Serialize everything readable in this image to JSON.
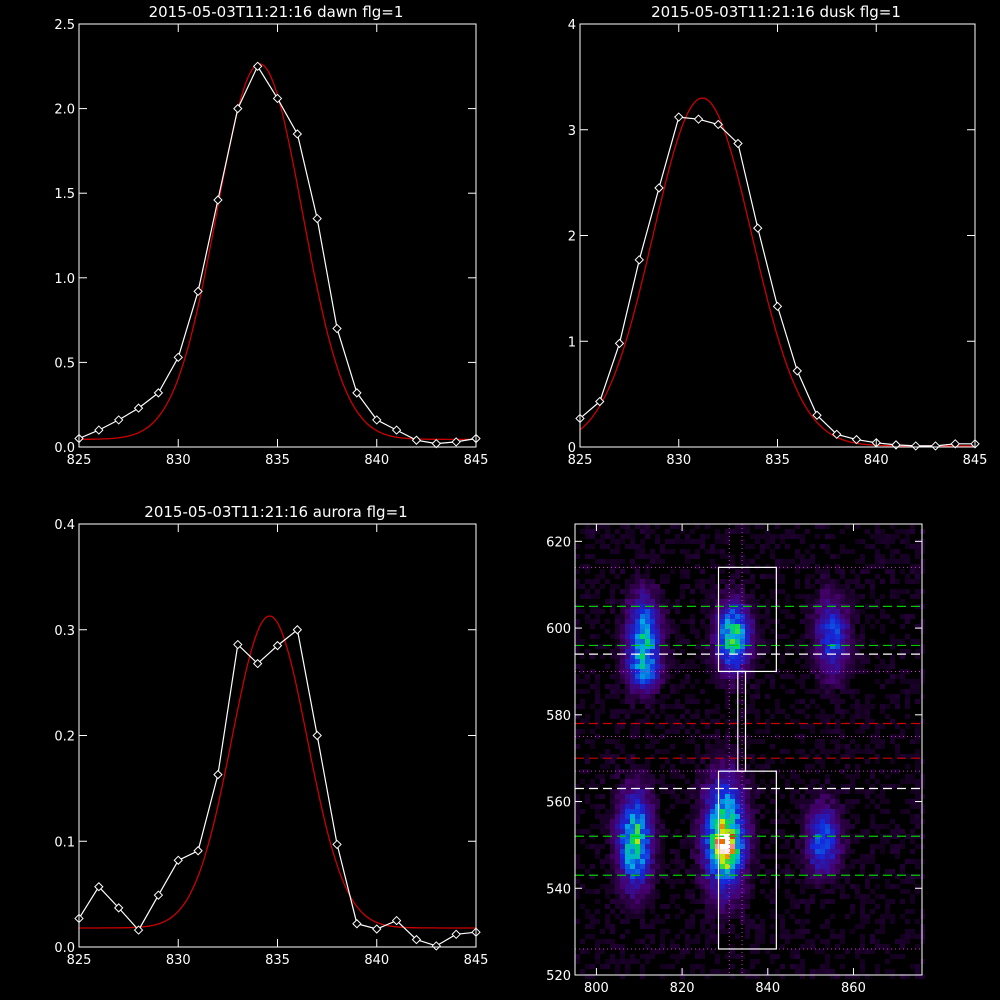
{
  "chart_data": [
    {
      "type": "line",
      "title": "2015-05-03T11:21:16 dawn flg=1",
      "xlim": [
        825,
        845
      ],
      "ylim": [
        0,
        2.5
      ],
      "xticks": [
        "825",
        "830",
        "835",
        "840",
        "845"
      ],
      "yticks": [
        "0.0",
        "0.5",
        "1.0",
        "1.5",
        "2.0",
        "2.5"
      ],
      "xtick_values": [
        825,
        830,
        835,
        840,
        845
      ],
      "ytick_values": [
        0,
        0.5,
        1.0,
        1.5,
        2.0,
        2.5
      ],
      "colors": {
        "data": "#ffffff",
        "fit": "#cc0000"
      },
      "series": [
        {
          "x": [
            825,
            826,
            827,
            828,
            829,
            830,
            831,
            832,
            833,
            834,
            835,
            836,
            837,
            838,
            839,
            840,
            841,
            842,
            843,
            844,
            845
          ],
          "values": [
            0.05,
            0.1,
            0.16,
            0.23,
            0.32,
            0.53,
            0.92,
            1.46,
            2.0,
            2.25,
            2.06,
            1.85,
            1.35,
            0.7,
            0.32,
            0.16,
            0.1,
            0.04,
            0.02,
            0.03,
            0.05
          ]
        },
        {
          "fit": {
            "amp": 2.22,
            "center": 834.1,
            "sigma": 2.15,
            "offset": 0.045
          }
        }
      ]
    },
    {
      "type": "line",
      "title": "2015-05-03T11:21:16 dusk flg=1",
      "xlim": [
        825,
        845
      ],
      "ylim": [
        0,
        4
      ],
      "xticks": [
        "825",
        "830",
        "835",
        "840",
        "845"
      ],
      "yticks": [
        "0",
        "1",
        "2",
        "3",
        "4"
      ],
      "xtick_values": [
        825,
        830,
        835,
        840,
        845
      ],
      "ytick_values": [
        0,
        1,
        2,
        3,
        4
      ],
      "colors": {
        "data": "#ffffff",
        "fit": "#cc0000"
      },
      "series": [
        {
          "x": [
            825,
            826,
            827,
            828,
            829,
            830,
            831,
            832,
            833,
            834,
            835,
            836,
            837,
            838,
            839,
            840,
            841,
            842,
            843,
            844,
            845
          ],
          "values": [
            0.27,
            0.43,
            0.98,
            1.77,
            2.45,
            3.12,
            3.1,
            3.05,
            2.87,
            2.07,
            1.33,
            0.72,
            0.3,
            0.12,
            0.07,
            0.04,
            0.02,
            0.01,
            0.01,
            0.03,
            0.03
          ]
        },
        {
          "fit": {
            "amp": 3.29,
            "center": 831.2,
            "sigma": 2.5,
            "offset": 0.01
          }
        }
      ]
    },
    {
      "type": "line",
      "title": "2015-05-03T11:21:16 aurora flg=1",
      "xlim": [
        825,
        845
      ],
      "ylim": [
        0,
        0.4
      ],
      "xticks": [
        "825",
        "830",
        "835",
        "840",
        "845"
      ],
      "yticks": [
        "0.0",
        "0.1",
        "0.2",
        "0.3",
        "0.4"
      ],
      "xtick_values": [
        825,
        830,
        835,
        840,
        845
      ],
      "ytick_values": [
        0,
        0.1,
        0.2,
        0.3,
        0.4
      ],
      "colors": {
        "data": "#ffffff",
        "fit": "#cc0000"
      },
      "series": [
        {
          "x": [
            825,
            826,
            827,
            828,
            829,
            830,
            831,
            832,
            833,
            834,
            835,
            836,
            837,
            838,
            839,
            840,
            841,
            842,
            843,
            844,
            845
          ],
          "values": [
            0.027,
            0.057,
            0.037,
            0.016,
            0.049,
            0.082,
            0.091,
            0.163,
            0.286,
            0.268,
            0.285,
            0.3,
            0.2,
            0.097,
            0.022,
            0.017,
            0.025,
            0.007,
            0.001,
            0.012,
            0.014
          ]
        },
        {
          "fit": {
            "amp": 0.295,
            "center": 834.6,
            "sigma": 1.9,
            "offset": 0.018
          }
        }
      ]
    },
    {
      "type": "heatmap",
      "title": "",
      "xlim": [
        795,
        876
      ],
      "ylim": [
        520,
        624
      ],
      "xticks": [
        "800",
        "820",
        "840",
        "860"
      ],
      "yticks": [
        "520",
        "540",
        "560",
        "580",
        "600",
        "620"
      ],
      "xtick_values": [
        800,
        820,
        840,
        860
      ],
      "ytick_values": [
        520,
        540,
        560,
        580,
        600,
        620
      ],
      "colors": {
        "box": "#ffffff",
        "green_line": "#00cc00",
        "red_line": "#cc0000",
        "white_line": "#ffffff",
        "dotted_line": "#cc33cc"
      },
      "blobs": [
        {
          "x": 811,
          "y": 598,
          "sx": 2.5,
          "sy": 6,
          "amp": 0.45
        },
        {
          "x": 811,
          "y": 590,
          "sx": 2.5,
          "sy": 3,
          "amp": 0.25
        },
        {
          "x": 832,
          "y": 598,
          "sx": 2.5,
          "sy": 5,
          "amp": 0.55
        },
        {
          "x": 855,
          "y": 598,
          "sx": 2.5,
          "sy": 6,
          "amp": 0.3
        },
        {
          "x": 809,
          "y": 551,
          "sx": 2.5,
          "sy": 7,
          "amp": 0.55
        },
        {
          "x": 830,
          "y": 552,
          "sx": 3,
          "sy": 8,
          "amp": 0.65
        },
        {
          "x": 830,
          "y": 549,
          "sx": 1.5,
          "sy": 2.5,
          "amp": 0.55
        },
        {
          "x": 853,
          "y": 551,
          "sx": 2.5,
          "sy": 5,
          "amp": 0.35
        }
      ],
      "boxes": [
        {
          "x0": 828.5,
          "x1": 842,
          "y0": 590,
          "y1": 614
        },
        {
          "x0": 828.5,
          "x1": 842,
          "y0": 526,
          "y1": 567
        },
        {
          "x0": 833,
          "x1": 834.8,
          "y0": 567,
          "y1": 590
        }
      ],
      "green_dashed_y": [
        605,
        596,
        552,
        543
      ],
      "white_dashed_y": [
        594,
        563
      ],
      "red_dashed_y": [
        578,
        570
      ],
      "dotted_y": [
        614,
        590,
        575,
        567,
        526
      ],
      "dotted_x": [
        831,
        834
      ]
    }
  ]
}
